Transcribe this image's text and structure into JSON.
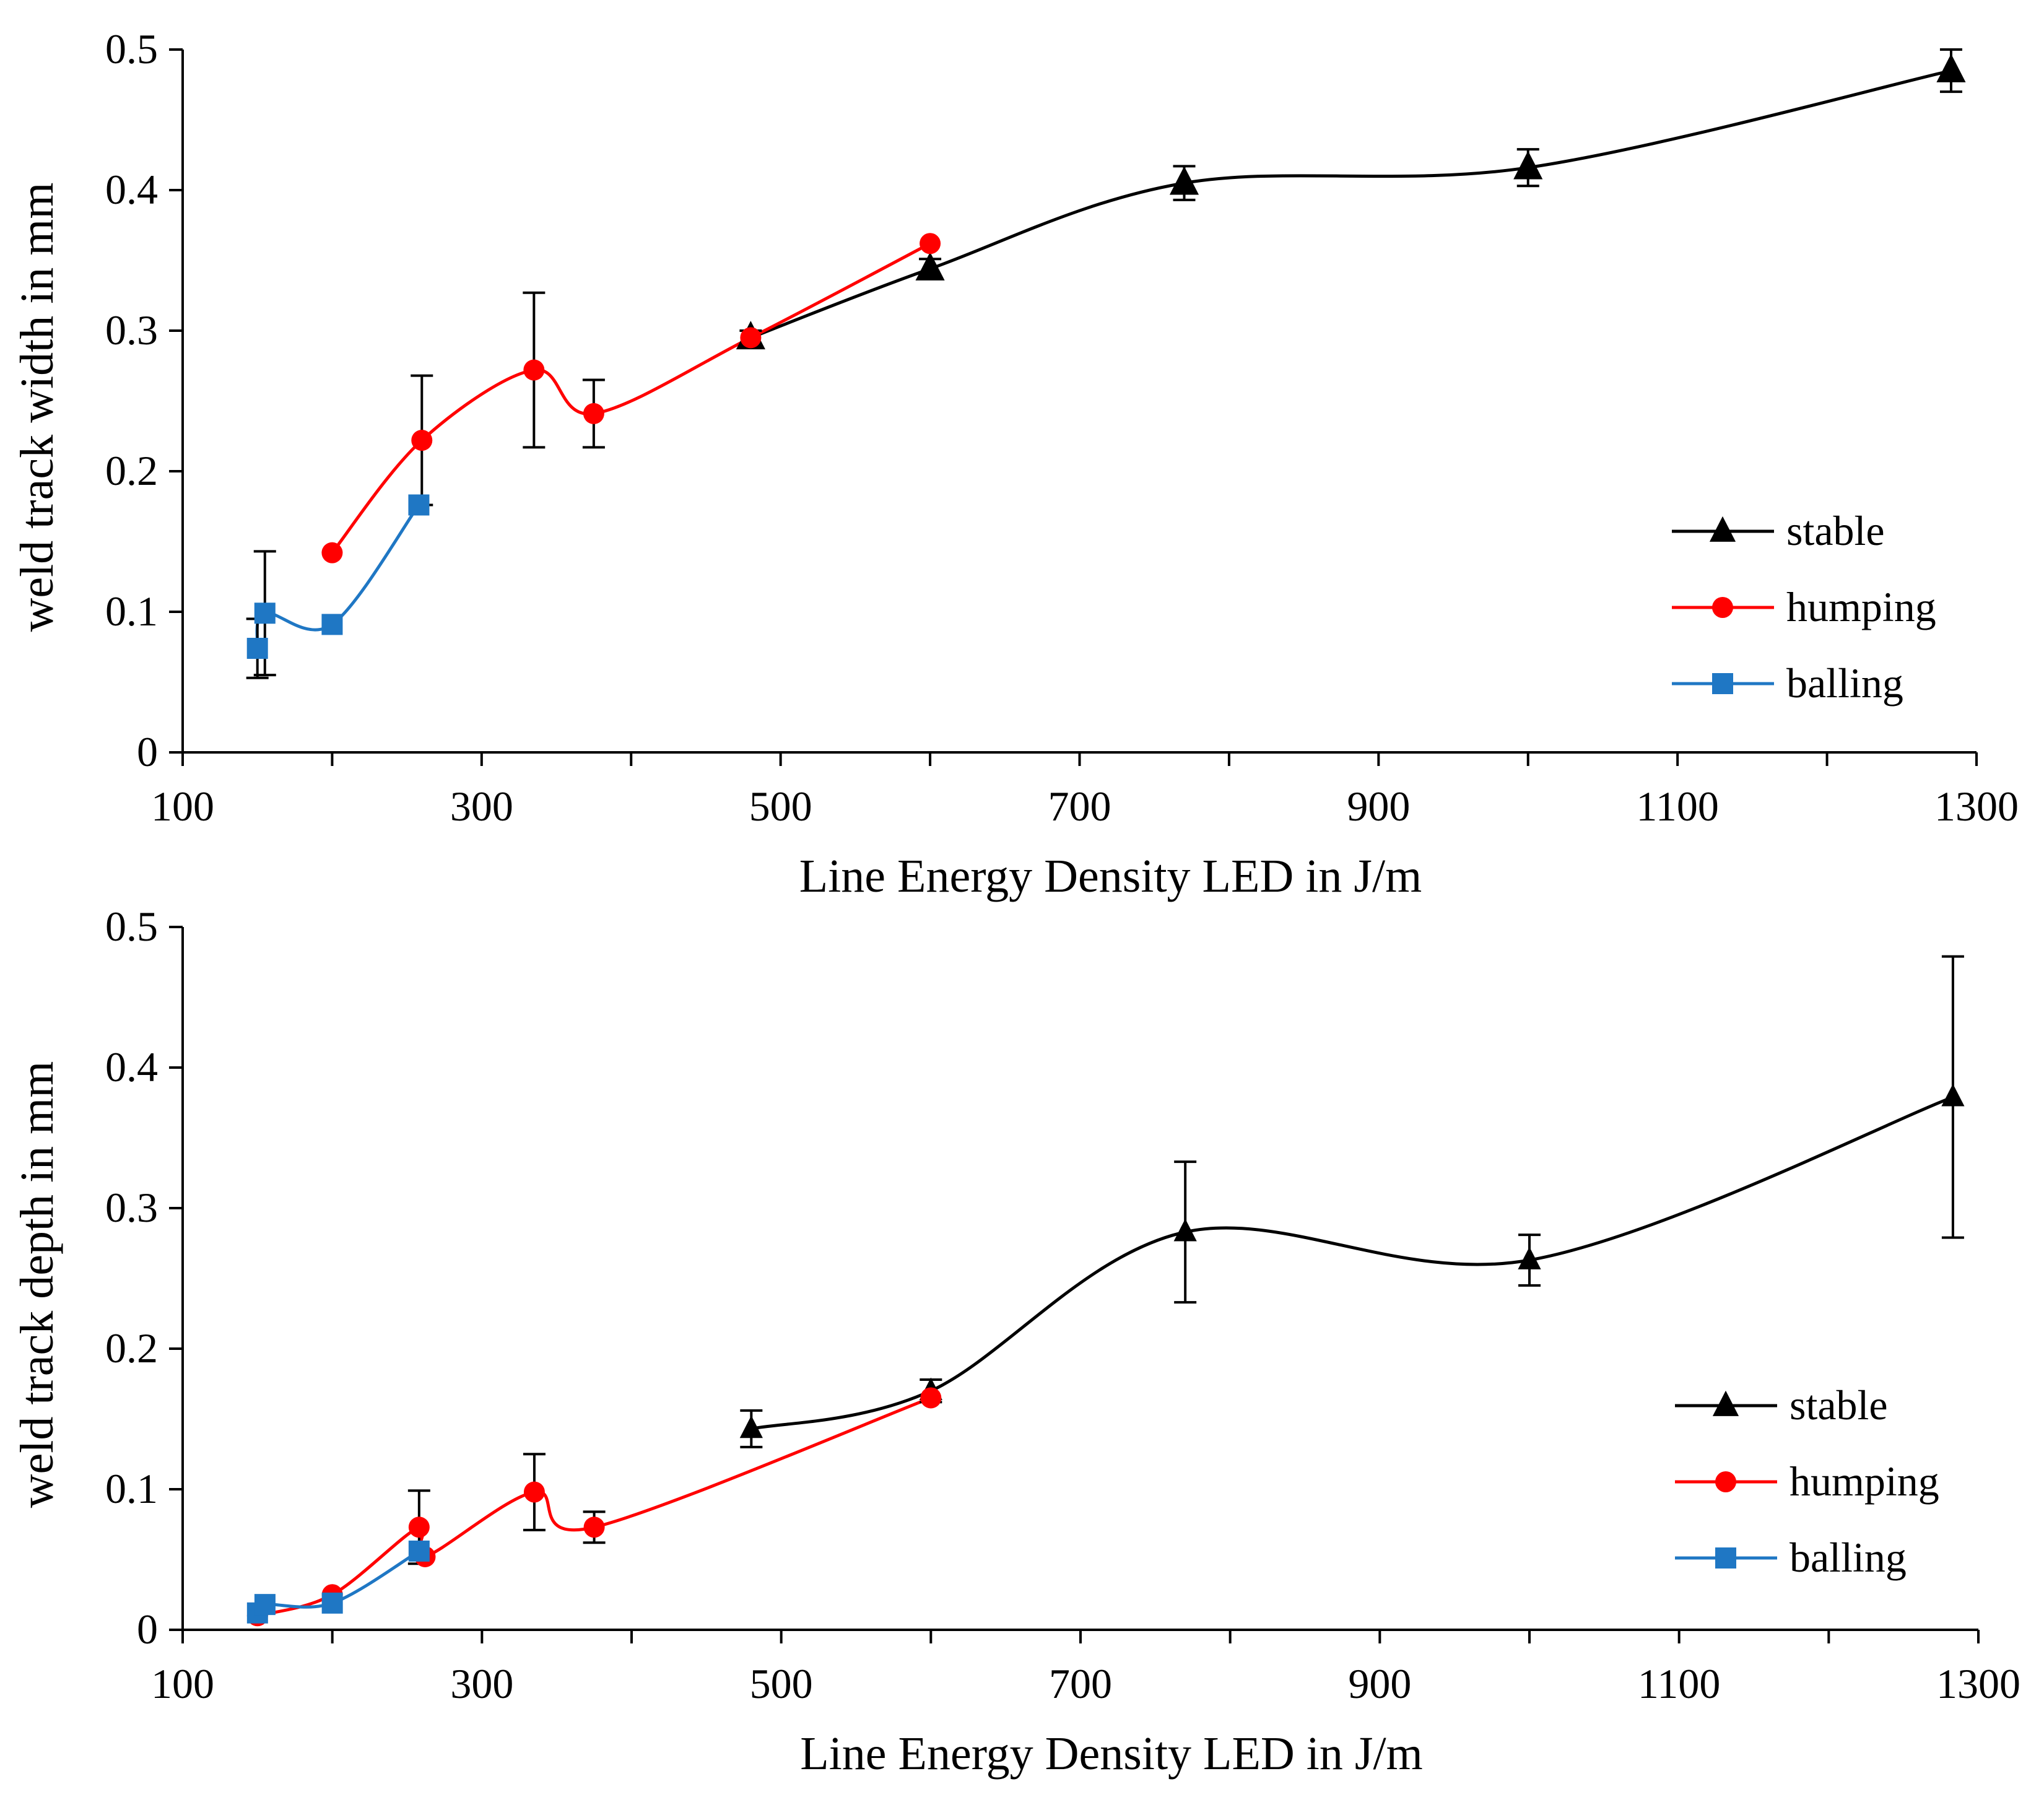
{
  "chart_data": [
    {
      "type": "line",
      "xlabel": "Line Energy Density LED in J/m",
      "ylabel": "weld track width in mm",
      "xlim": [
        100,
        1300
      ],
      "ylim": [
        0,
        0.5
      ],
      "x_ticks": [
        "100",
        "300",
        "500",
        "700",
        "900",
        "1100",
        "1300"
      ],
      "y_ticks": [
        "0",
        "0.1",
        "0.2",
        "0.3",
        "0.4",
        "0.5"
      ],
      "legend_position": "right-center",
      "series": [
        {
          "name": "stable",
          "color": "#000000",
          "marker": "triangle",
          "points": [
            {
              "x": 480,
              "y": 0.295,
              "err": 0.005
            },
            {
              "x": 600,
              "y": 0.344,
              "err": 0.007
            },
            {
              "x": 770,
              "y": 0.405,
              "err": 0.012
            },
            {
              "x": 1000,
              "y": 0.416,
              "err": 0.013
            },
            {
              "x": 1283,
              "y": 0.485,
              "err": 0.015
            }
          ]
        },
        {
          "name": "humping",
          "color": "#ff0000",
          "marker": "circle",
          "points": [
            {
              "x": 200,
              "y": 0.142,
              "err": 0
            },
            {
              "x": 260,
              "y": 0.222,
              "err": 0.046
            },
            {
              "x": 335,
              "y": 0.272,
              "err": 0.055
            },
            {
              "x": 375,
              "y": 0.241,
              "err": 0.024
            },
            {
              "x": 480,
              "y": 0.295,
              "err": 0
            },
            {
              "x": 600,
              "y": 0.362,
              "err": 0
            }
          ]
        },
        {
          "name": "balling",
          "color": "#1f77c4",
          "marker": "square",
          "points": [
            {
              "x": 150,
              "y": 0.074,
              "err": 0.021
            },
            {
              "x": 155,
              "y": 0.099,
              "err": 0.044
            },
            {
              "x": 200,
              "y": 0.091,
              "err": 0
            },
            {
              "x": 258,
              "y": 0.176,
              "err": 0
            }
          ]
        }
      ]
    },
    {
      "type": "line",
      "xlabel": "Line Energy Density LED in J/m",
      "ylabel": "weld track depth in mm",
      "xlim": [
        100,
        1300
      ],
      "ylim": [
        0,
        0.5
      ],
      "x_ticks": [
        "100",
        "300",
        "500",
        "700",
        "900",
        "1100",
        "1300"
      ],
      "y_ticks": [
        "0",
        "0.1",
        "0.2",
        "0.3",
        "0.4",
        "0.5"
      ],
      "legend_position": "right-bottom",
      "series": [
        {
          "name": "stable",
          "color": "#000000",
          "marker": "triangle",
          "points": [
            {
              "x": 480,
              "y": 0.143,
              "err": 0.013
            },
            {
              "x": 600,
              "y": 0.17,
              "err": 0.008
            },
            {
              "x": 770,
              "y": 0.283,
              "err": 0.05
            },
            {
              "x": 1000,
              "y": 0.263,
              "err": 0.018
            },
            {
              "x": 1283,
              "y": 0.379,
              "err": 0.1
            }
          ]
        },
        {
          "name": "humping",
          "color": "#ff0000",
          "marker": "circle",
          "points": [
            {
              "x": 150,
              "y": 0.01,
              "err": 0
            },
            {
              "x": 200,
              "y": 0.025,
              "err": 0
            },
            {
              "x": 258,
              "y": 0.073,
              "err": 0.026
            },
            {
              "x": 262,
              "y": 0.052,
              "err": 0
            },
            {
              "x": 335,
              "y": 0.098,
              "err": 0.027
            },
            {
              "x": 375,
              "y": 0.073,
              "err": 0.011
            },
            {
              "x": 600,
              "y": 0.165,
              "err": 0
            }
          ]
        },
        {
          "name": "balling",
          "color": "#1f77c4",
          "marker": "square",
          "points": [
            {
              "x": 150,
              "y": 0.012,
              "err": 0
            },
            {
              "x": 155,
              "y": 0.018,
              "err": 0
            },
            {
              "x": 200,
              "y": 0.019,
              "err": 0
            },
            {
              "x": 258,
              "y": 0.056,
              "err": 0
            }
          ]
        }
      ]
    }
  ]
}
